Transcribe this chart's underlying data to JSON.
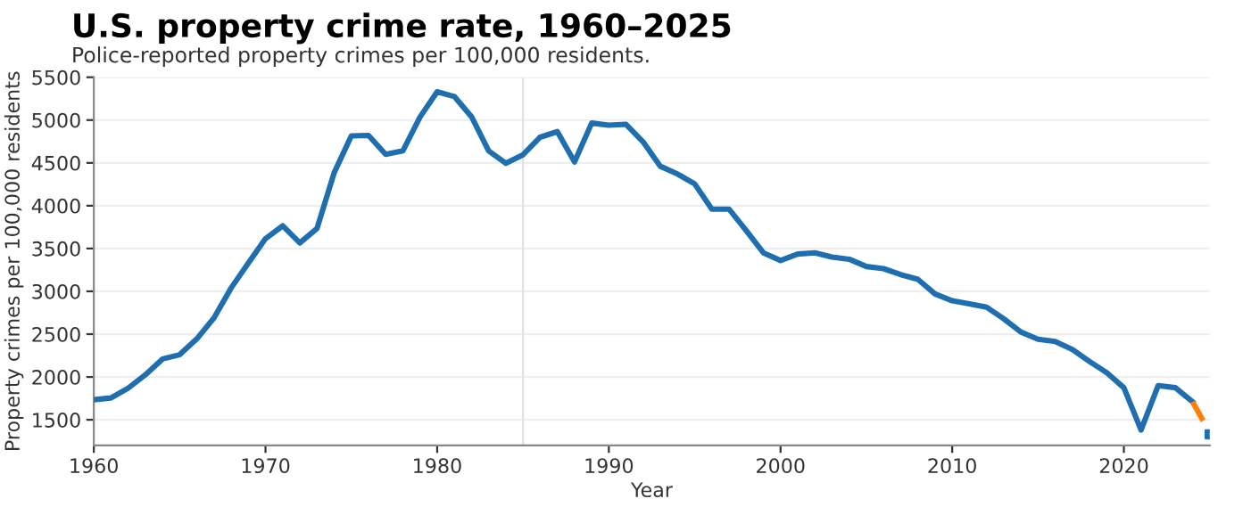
{
  "chart_data": {
    "type": "line",
    "title": "U.S. property crime rate, 1960–2025",
    "subtitle": "Police-reported property crimes per 100,000 residents.",
    "xlabel": "Year",
    "ylabel": "Property crimes per 100,000 residents",
    "series": [
      {
        "color": "#1f6fb0",
        "x": [
          1960,
          1961,
          1962,
          1963,
          1964,
          1965,
          1966,
          1967,
          1968,
          1969,
          1970,
          1971,
          1972,
          1973,
          1974,
          1975,
          1976,
          1977,
          1978,
          1979,
          1980,
          1981,
          1982,
          1983,
          1984,
          1985,
          1986,
          1987,
          1988,
          1989,
          1990,
          1991,
          1992,
          1993,
          1994,
          1995,
          1996,
          1997,
          1998,
          1999,
          2000,
          2001,
          2002,
          2003,
          2004,
          2005,
          2006,
          2007,
          2008,
          2009,
          2010,
          2011,
          2012,
          2013,
          2014,
          2015,
          2016,
          2017,
          2018,
          2019,
          2020,
          2021,
          2022,
          2023,
          2024
        ],
        "values": [
          1735,
          1755,
          1870,
          2025,
          2210,
          2260,
          2445,
          2690,
          3040,
          3330,
          3615,
          3765,
          3565,
          3735,
          4385,
          4815,
          4820,
          4600,
          4640,
          5035,
          5330,
          5275,
          5040,
          4640,
          4495,
          4595,
          4800,
          4865,
          4510,
          4965,
          4940,
          4950,
          4745,
          4460,
          4370,
          4255,
          3960,
          3960,
          3710,
          3450,
          3360,
          3435,
          3450,
          3400,
          3375,
          3290,
          3265,
          3195,
          3140,
          2970,
          2890,
          2855,
          2815,
          2680,
          2525,
          2440,
          2415,
          2320,
          2180,
          2050,
          1875,
          1380,
          1900,
          1875,
          1710
        ]
      },
      {
        "color": "#ff7f0e",
        "line_style": "dashed",
        "x": [
          2024,
          2025
        ],
        "values": [
          1710,
          1350
        ]
      },
      {
        "type": "scatter",
        "color": "#1f6fb0",
        "marker": "square",
        "x": [
          2025
        ],
        "values": [
          1330
        ]
      }
    ],
    "xlim": [
      1960,
      2025
    ],
    "xticks": [
      1960,
      1970,
      1980,
      1990,
      2000,
      2010,
      2020
    ],
    "ylim": [
      1200,
      5500
    ],
    "yticks": [
      1500,
      2000,
      2500,
      3000,
      3500,
      4000,
      4500,
      5000,
      5500
    ],
    "grid": "y",
    "ref_lines": [
      {
        "axis": "x",
        "value": 1985,
        "color": "#dde3ea"
      }
    ],
    "legend": false
  }
}
